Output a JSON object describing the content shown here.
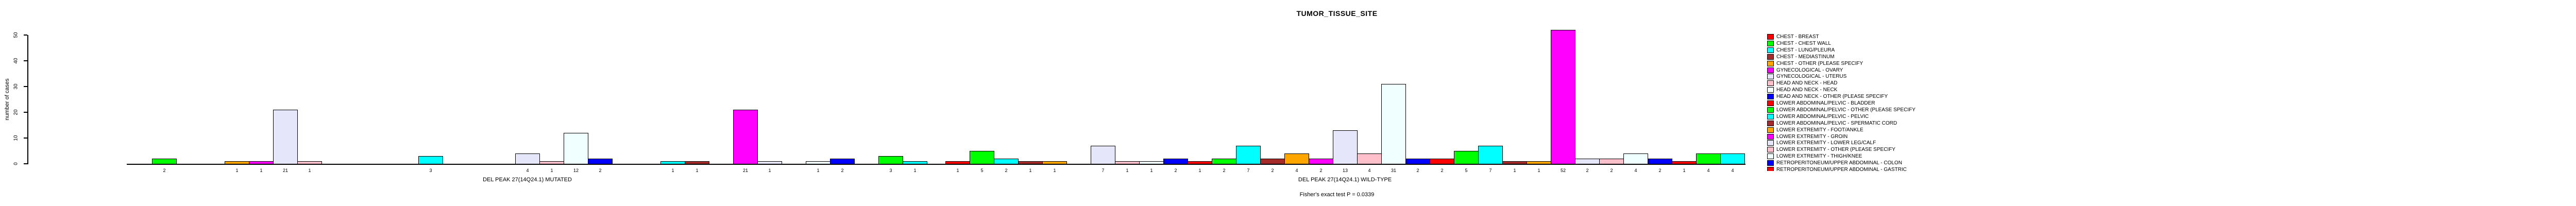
{
  "title": "TUMOR_TISSUE_SITE",
  "chart_data": {
    "type": "bar",
    "title": "TUMOR_TISSUE_SITE",
    "xlabel": "",
    "ylabel": "number of cases",
    "ylim": [
      0,
      50
    ],
    "yticks": [
      0,
      10,
      20,
      30,
      40,
      50
    ],
    "grid": false,
    "legend_position": "right-of-plot",
    "annotation": "Fisher's exact test P = 0.0339",
    "bar_value_labels": true,
    "n_category_slots": 33,
    "color_cycle": [
      "#FF0000",
      "#00FF00",
      "#00FFFF",
      "#A52A2A",
      "#FFA500",
      "#FF00FF",
      "#E6E6FA",
      "#FFC0CB",
      "#F0FFFF",
      "#0000FF"
    ],
    "groups": [
      {
        "label": "DEL PEAK 27(14Q24.1) MUTATED",
        "values": [
          0,
          2,
          0,
          0,
          1,
          1,
          21,
          1,
          0,
          0,
          0,
          0,
          3,
          0,
          0,
          0,
          4,
          1,
          12,
          2,
          0,
          0,
          1,
          1,
          0,
          21,
          1,
          0,
          1,
          2,
          0,
          3,
          1
        ]
      },
      {
        "label": "DEL PEAK 27(14Q24.1) WILD-TYPE",
        "values": [
          1,
          5,
          2,
          1,
          1,
          0,
          7,
          1,
          1,
          2,
          1,
          2,
          7,
          2,
          4,
          2,
          13,
          4,
          31,
          2,
          2,
          5,
          7,
          1,
          1,
          52,
          2,
          2,
          4,
          2,
          1,
          4,
          4
        ]
      }
    ],
    "legend": [
      {
        "label": "CHEST - BREAST",
        "color": "#FF0000"
      },
      {
        "label": "CHEST - CHEST WALL",
        "color": "#00FF00"
      },
      {
        "label": "CHEST - LUNG/PLEURA",
        "color": "#00FFFF"
      },
      {
        "label": "CHEST - MEDIASTINUM",
        "color": "#A52A2A"
      },
      {
        "label": "CHEST - OTHER (PLEASE SPECIFY",
        "color": "#FFA500"
      },
      {
        "label": "GYNECOLOGICAL - OVARY",
        "color": "#FF00FF"
      },
      {
        "label": "GYNECOLOGICAL - UTERUS",
        "color": "#E6E6FA"
      },
      {
        "label": "HEAD AND NECK - HEAD",
        "color": "#FFC0CB"
      },
      {
        "label": "HEAD AND NECK - NECK",
        "color": "#F0FFFF"
      },
      {
        "label": "HEAD AND NECK - OTHER (PLEASE SPECIFY",
        "color": "#0000FF"
      },
      {
        "label": "LOWER ABDOMINAL/PELVIC - BLADDER",
        "color": "#FF0000"
      },
      {
        "label": "LOWER ABDOMINAL/PELVIC - OTHER (PLEASE SPECIFY",
        "color": "#00FF00"
      },
      {
        "label": "LOWER ABDOMINAL/PELVIC - PELVIC",
        "color": "#00FFFF"
      },
      {
        "label": "LOWER ABDOMINAL/PELVIC - SPERMATIC CORD",
        "color": "#A52A2A"
      },
      {
        "label": "LOWER EXTREMITY - FOOT/ANKLE",
        "color": "#FFA500"
      },
      {
        "label": "LOWER EXTREMITY - GROIN",
        "color": "#FF00FF"
      },
      {
        "label": "LOWER EXTREMITY - LOWER LEG/CALF",
        "color": "#E6E6FA"
      },
      {
        "label": "LOWER EXTREMITY - OTHER (PLEASE SPECIFY",
        "color": "#FFC0CB"
      },
      {
        "label": "LOWER EXTREMITY - THIGH/KNEE",
        "color": "#F0FFFF"
      },
      {
        "label": "RETROPERITONEUM/UPPER ABDOMINAL - COLON",
        "color": "#0000FF"
      },
      {
        "label": "RETROPERITONEUM/UPPER ABDOMINAL - GASTRIC",
        "color": "#FF0000",
        "clipped": true
      }
    ]
  }
}
